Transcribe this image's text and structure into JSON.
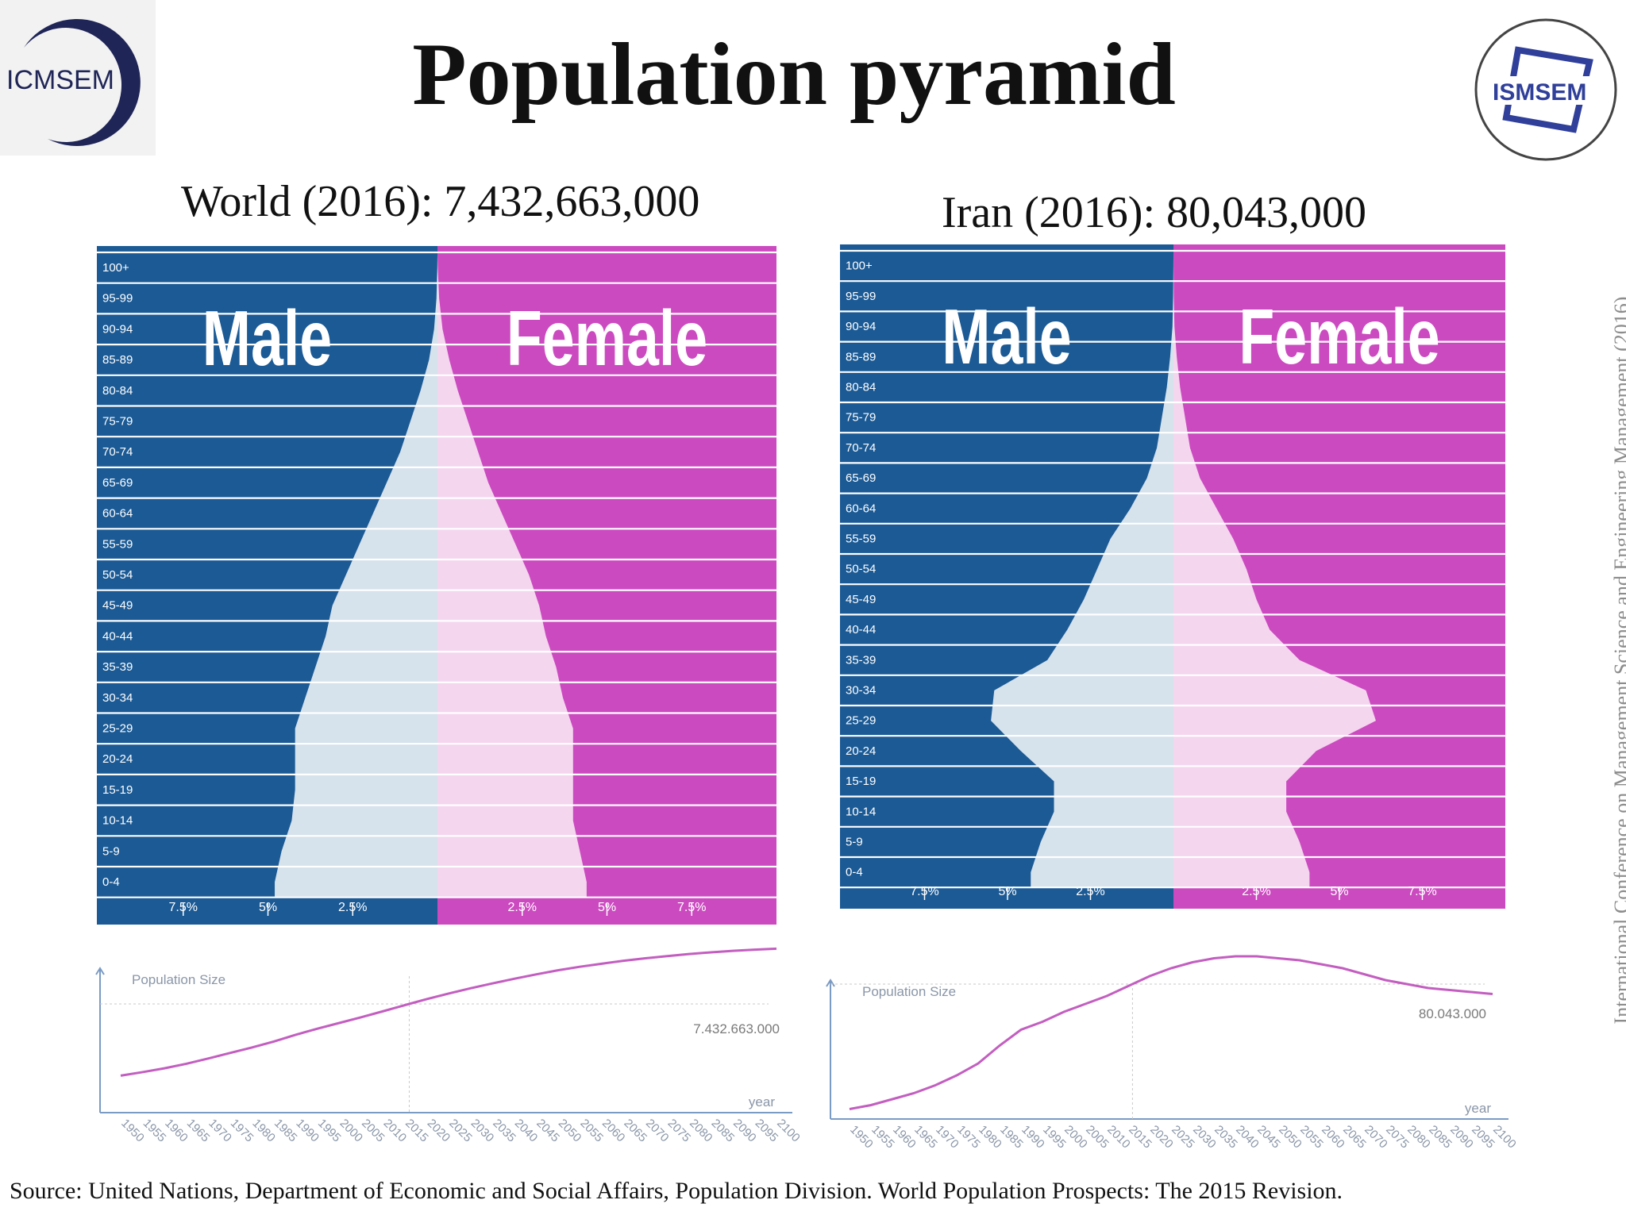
{
  "header": {
    "title": "Population pyramid",
    "left_logo_text": "ICMSEM",
    "right_logo_text": "ISMSEM"
  },
  "side_text": "International Conference on Management Science and Engineering Management (2016)",
  "source": "Source: United Nations, Department of Economic and Social Affairs, Population Division. World Population Prospects: The 2015 Revision.",
  "colors": {
    "male_bg": "#1b5a95",
    "female_bg": "#cc4ac0",
    "male_fill": "#d6e2ec",
    "female_fill": "#f4d6ef",
    "trend_line": "#c35ec0",
    "axis": "#7a9bc4"
  },
  "chart_data": [
    {
      "type": "bar",
      "subtype": "population-pyramid",
      "title": "World (2016): 7,432,663,000",
      "categories": [
        "0-4",
        "5-9",
        "10-14",
        "15-19",
        "20-24",
        "25-29",
        "30-34",
        "35-39",
        "40-44",
        "45-49",
        "50-54",
        "55-59",
        "60-64",
        "65-69",
        "70-74",
        "75-79",
        "80-84",
        "85-89",
        "90-94",
        "95-99",
        "100+"
      ],
      "category_labels_top_down": [
        "100+",
        "95-99",
        "90-94",
        "85-89",
        "80-84",
        "75-79",
        "70-74",
        "65-69",
        "60-64",
        "55-59",
        "50-54",
        "45-49",
        "40-44",
        "35-39",
        "30-34",
        "25-29",
        "20-24",
        "15-19",
        "10-14",
        "5-9",
        "0-4"
      ],
      "series": [
        {
          "name": "Male",
          "values": [
            4.8,
            4.6,
            4.3,
            4.2,
            4.2,
            4.2,
            3.9,
            3.6,
            3.3,
            3.1,
            2.7,
            2.3,
            1.9,
            1.5,
            1.1,
            0.8,
            0.5,
            0.25,
            0.1,
            0.03,
            0.005
          ]
        },
        {
          "name": "Female",
          "values": [
            4.4,
            4.2,
            4.0,
            4.0,
            4.0,
            4.0,
            3.7,
            3.5,
            3.2,
            3.0,
            2.7,
            2.3,
            1.9,
            1.5,
            1.2,
            0.9,
            0.6,
            0.35,
            0.15,
            0.05,
            0.01
          ]
        }
      ],
      "xlim": [
        -10,
        10
      ],
      "ticks": [
        {
          "v": -7.5,
          "label": "7.5%"
        },
        {
          "v": -5,
          "label": "5%"
        },
        {
          "v": -2.5,
          "label": "2.5%"
        },
        {
          "v": 2.5,
          "label": "2.5%"
        },
        {
          "v": 5,
          "label": "5%"
        },
        {
          "v": 7.5,
          "label": "7.5%"
        }
      ],
      "side_labels": {
        "male": "Male",
        "female": "Female"
      }
    },
    {
      "type": "bar",
      "subtype": "population-pyramid",
      "title": "Iran (2016): 80,043,000",
      "categories": [
        "0-4",
        "5-9",
        "10-14",
        "15-19",
        "20-24",
        "25-29",
        "30-34",
        "35-39",
        "40-44",
        "45-49",
        "50-54",
        "55-59",
        "60-64",
        "65-69",
        "70-74",
        "75-79",
        "80-84",
        "85-89",
        "90-94",
        "95-99",
        "100+"
      ],
      "category_labels_top_down": [
        "100+",
        "95-99",
        "90-94",
        "85-89",
        "80-84",
        "75-79",
        "70-74",
        "65-69",
        "60-64",
        "55-59",
        "50-54",
        "45-49",
        "40-44",
        "35-39",
        "30-34",
        "25-29",
        "20-24",
        "15-19",
        "10-14",
        "5-9",
        "0-4"
      ],
      "series": [
        {
          "name": "Male",
          "values": [
            4.3,
            4.0,
            3.6,
            3.6,
            4.6,
            5.5,
            5.4,
            3.8,
            3.2,
            2.7,
            2.3,
            1.9,
            1.3,
            0.8,
            0.5,
            0.35,
            0.2,
            0.1,
            0.03,
            0.01,
            0.002
          ]
        },
        {
          "name": "Female",
          "values": [
            4.1,
            3.8,
            3.4,
            3.4,
            4.3,
            6.1,
            5.8,
            3.8,
            2.9,
            2.5,
            2.2,
            1.8,
            1.3,
            0.8,
            0.5,
            0.35,
            0.2,
            0.1,
            0.03,
            0.01,
            0.002
          ]
        }
      ],
      "xlim": [
        -10,
        10
      ],
      "ticks": [
        {
          "v": -7.5,
          "label": "7.5%"
        },
        {
          "v": -5,
          "label": "5%"
        },
        {
          "v": -2.5,
          "label": "2.5%"
        },
        {
          "v": 2.5,
          "label": "2.5%"
        },
        {
          "v": 5,
          "label": "5%"
        },
        {
          "v": 7.5,
          "label": "7.5%"
        }
      ],
      "side_labels": {
        "male": "Male",
        "female": "Female"
      }
    },
    {
      "type": "line",
      "ylabel": "Population Size",
      "xlabel": "year",
      "marker_year": 2016,
      "marker_label": "7.432.663.000",
      "x": [
        1950,
        1955,
        1960,
        1965,
        1970,
        1975,
        1980,
        1985,
        1990,
        1995,
        2000,
        2005,
        2010,
        2015,
        2020,
        2025,
        2030,
        2035,
        2040,
        2045,
        2050,
        2055,
        2060,
        2065,
        2070,
        2075,
        2080,
        2085,
        2090,
        2095,
        2100
      ],
      "x_tick_labels": [
        "1950",
        "1955",
        "1960",
        "1965",
        "1970",
        "1975",
        "1980",
        "1985",
        "1990",
        "1995",
        "2000",
        "2005",
        "2010",
        "2015",
        "2020",
        "2025",
        "2030",
        "2035",
        "2040",
        "2045",
        "2050",
        "2055",
        "2060",
        "2065",
        "2070",
        "2075",
        "2080",
        "2085",
        "2090",
        "2095",
        "2100"
      ],
      "series": [
        {
          "values": [
            2.53,
            2.77,
            3.03,
            3.34,
            3.7,
            4.08,
            4.45,
            4.86,
            5.32,
            5.74,
            6.13,
            6.52,
            6.93,
            7.35,
            7.76,
            8.14,
            8.5,
            8.83,
            9.15,
            9.45,
            9.73,
            9.97,
            10.18,
            10.38,
            10.55,
            10.7,
            10.84,
            10.96,
            11.06,
            11.14,
            11.21
          ]
        }
      ],
      "ylim": [
        0,
        11.5
      ],
      "units": "billions"
    },
    {
      "type": "line",
      "ylabel": "Population Size",
      "xlabel": "year",
      "marker_year": 2016,
      "marker_label": "80.043.000",
      "x": [
        1950,
        1955,
        1960,
        1965,
        1970,
        1975,
        1980,
        1985,
        1990,
        1995,
        2000,
        2005,
        2010,
        2015,
        2020,
        2025,
        2030,
        2035,
        2040,
        2045,
        2050,
        2055,
        2060,
        2065,
        2070,
        2075,
        2080,
        2085,
        2090,
        2095,
        2100
      ],
      "x_tick_labels": [
        "1950",
        "1955",
        "1960",
        "1965",
        "1970",
        "1975",
        "1980",
        "1985",
        "1990",
        "1995",
        "2000",
        "2005",
        "2010",
        "2015",
        "2020",
        "2025",
        "2030",
        "2035",
        "2040",
        "2045",
        "2050",
        "2055",
        "2060",
        "2065",
        "2070",
        "2075",
        "2080",
        "2085",
        "2090",
        "2095",
        "2100"
      ],
      "series": [
        {
          "values": [
            17,
            19,
            22,
            25,
            29,
            34,
            40,
            49,
            57,
            61,
            66,
            70,
            74,
            79,
            84,
            88,
            91,
            93,
            94,
            94,
            93,
            92,
            90,
            88,
            85,
            82,
            80,
            78,
            77,
            76,
            75
          ]
        }
      ],
      "ylim": [
        0,
        100
      ],
      "units": "millions"
    }
  ]
}
